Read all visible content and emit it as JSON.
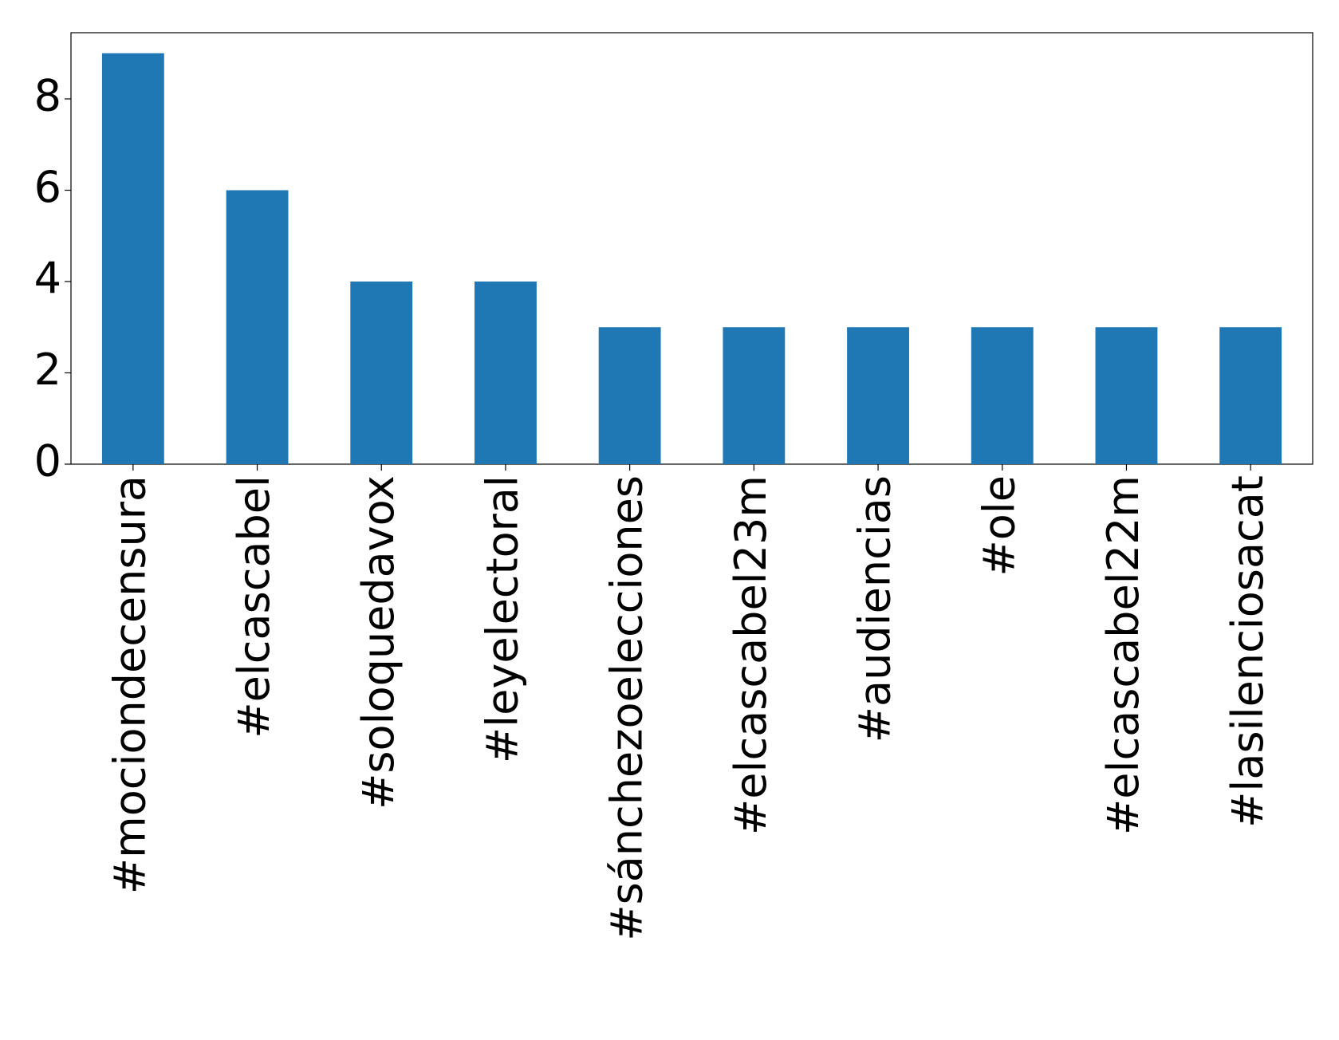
{
  "chart_data": {
    "type": "bar",
    "categories": [
      "#mociondecensura",
      "#elcascabel",
      "#soloquedavox",
      "#leyelectoral",
      "#sánchezoelecciones",
      "#elcascabel23m",
      "#audiencias",
      "#ole",
      "#elcascabel22m",
      "#lasilenciosacat"
    ],
    "values": [
      9,
      6,
      4,
      4,
      3,
      3,
      3,
      3,
      3,
      3
    ],
    "color": "#1f77b4",
    "ylim": [
      0,
      9.45
    ],
    "yticks": [
      0,
      2,
      4,
      6,
      8
    ],
    "grid": false
  }
}
